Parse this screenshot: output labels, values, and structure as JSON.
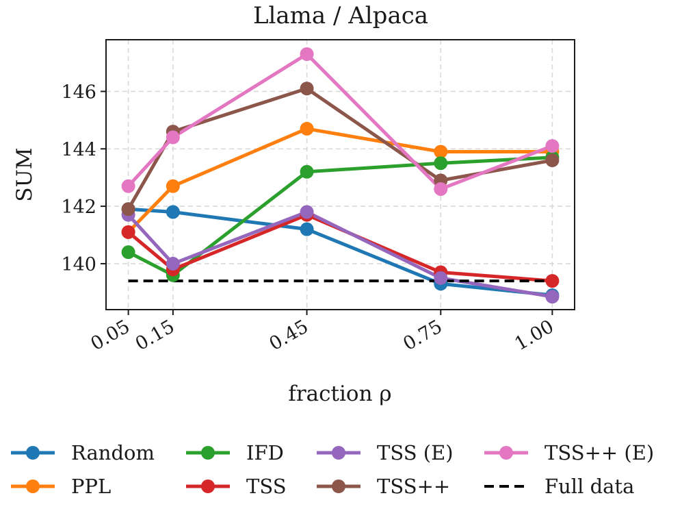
{
  "chart_data": {
    "type": "line",
    "title": "Llama / Alpaca",
    "xlabel": "fraction ρ",
    "ylabel": "SUM",
    "x": [
      0.05,
      0.15,
      0.45,
      0.75,
      1.0
    ],
    "xtick_labels": [
      "0.05",
      "0.15",
      "0.45",
      "0.75",
      "1.00"
    ],
    "xlim": [
      0.0,
      1.05
    ],
    "ylim": [
      138.4,
      147.8
    ],
    "yticks": [
      140,
      142,
      144,
      146
    ],
    "ytick_labels": [
      "140",
      "142",
      "144",
      "146"
    ],
    "grid": true,
    "legend_position": "bottom",
    "series": [
      {
        "name": "Random",
        "color": "#1f77b4",
        "style": "solid-marker",
        "values": [
          141.9,
          141.8,
          141.2,
          139.3,
          138.9
        ]
      },
      {
        "name": "PPL",
        "color": "#ff7f0e",
        "style": "solid-marker",
        "values": [
          141.1,
          142.7,
          144.7,
          143.9,
          143.9
        ]
      },
      {
        "name": "IFD",
        "color": "#2ca02c",
        "style": "solid-marker",
        "values": [
          140.4,
          139.6,
          143.2,
          143.5,
          143.7
        ]
      },
      {
        "name": "TSS",
        "color": "#d62728",
        "style": "solid-marker",
        "values": [
          141.1,
          139.8,
          141.7,
          139.7,
          139.4
        ]
      },
      {
        "name": "TSS (E)",
        "color": "#9467bd",
        "style": "solid-marker",
        "values": [
          141.7,
          140.0,
          141.8,
          139.5,
          138.85
        ]
      },
      {
        "name": "TSS++",
        "color": "#8c564b",
        "style": "solid-marker",
        "values": [
          141.9,
          144.6,
          146.1,
          142.9,
          143.6
        ]
      },
      {
        "name": "TSS++ (E)",
        "color": "#e377c2",
        "style": "solid-marker",
        "values": [
          142.7,
          144.4,
          147.3,
          142.6,
          144.1
        ]
      },
      {
        "name": "Full data",
        "color": "#000000",
        "style": "dashed",
        "values": [
          139.4,
          139.4,
          139.4,
          139.4,
          139.4
        ]
      }
    ]
  }
}
